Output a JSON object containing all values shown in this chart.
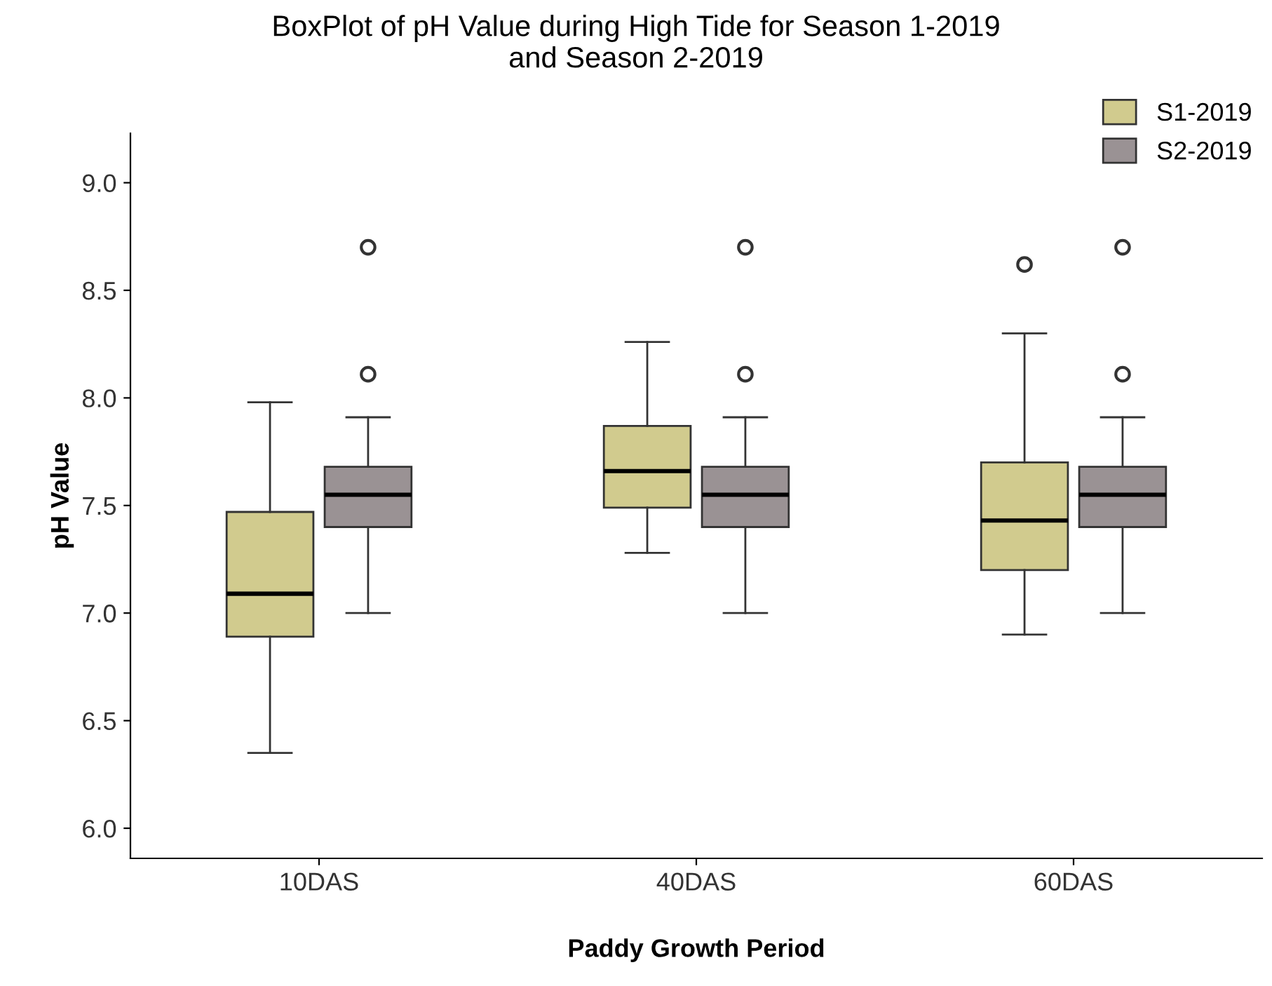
{
  "chart_data": {
    "type": "box",
    "title": "BoxPlot of pH Value during High Tide for Season 1-2019\nand Season 2-2019",
    "xlabel": "Paddy Growth Period",
    "ylabel": "pH Value",
    "categories": [
      "10DAS",
      "40DAS",
      "60DAS"
    ],
    "ylim": [
      5.86,
      9.23
    ],
    "yticks": [
      {
        "value": 6.0,
        "label": "6.0"
      },
      {
        "value": 6.5,
        "label": "6.5"
      },
      {
        "value": 7.0,
        "label": "7.0"
      },
      {
        "value": 7.5,
        "label": "7.5"
      },
      {
        "value": 8.0,
        "label": "8.0"
      },
      {
        "value": 8.5,
        "label": "8.5"
      },
      {
        "value": 9.0,
        "label": "9.0"
      }
    ],
    "grid": false,
    "legend": "top right",
    "series": [
      {
        "name": "S1-2019",
        "color": "#d1cb8e",
        "boxes": [
          {
            "low": 6.35,
            "q1": 6.89,
            "median": 7.09,
            "q3": 7.47,
            "high": 7.98
          },
          {
            "low": 7.28,
            "q1": 7.49,
            "median": 7.66,
            "q3": 7.87,
            "high": 8.26
          },
          {
            "low": 6.9,
            "q1": 7.2,
            "median": 7.43,
            "q3": 7.7,
            "high": 8.3,
            "outliers": [
              8.62
            ]
          }
        ]
      },
      {
        "name": "S2-2019",
        "color": "#9a9294",
        "boxes": [
          {
            "low": 7.0,
            "q1": 7.4,
            "median": 7.55,
            "q3": 7.68,
            "high": 7.91,
            "outliers": [
              8.11,
              8.7
            ]
          },
          {
            "low": 7.0,
            "q1": 7.4,
            "median": 7.55,
            "q3": 7.68,
            "high": 7.91,
            "outliers": [
              8.11,
              8.7
            ]
          },
          {
            "low": 7.0,
            "q1": 7.4,
            "median": 7.55,
            "q3": 7.68,
            "high": 7.91,
            "outliers": [
              8.11,
              8.7
            ]
          }
        ]
      }
    ]
  }
}
